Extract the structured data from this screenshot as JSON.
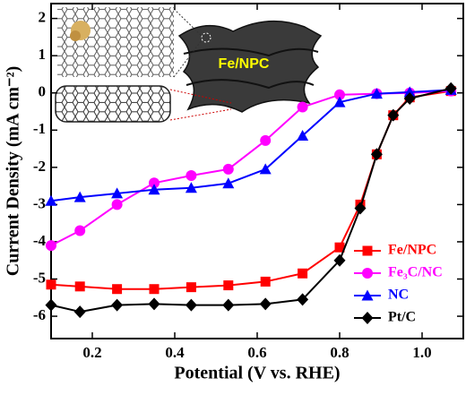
{
  "chart_data": {
    "type": "line",
    "xlabel": "Potential (V vs. RHE)",
    "ylabel": "Current Density (mA cm⁻²)",
    "annotation": "Fe/NPC",
    "xlim": [
      0.1,
      1.1
    ],
    "ylim": [
      -6.6,
      2.4
    ],
    "xticks": [
      0.2,
      0.4,
      0.6,
      0.8,
      {
        "value": 1.0,
        "label": "1.0"
      }
    ],
    "yticks": [
      -6,
      -5,
      -4,
      -3,
      -2,
      -1,
      0,
      1,
      2
    ],
    "legend": "lower right",
    "series": [
      {
        "name": "Fe/NPC",
        "color": "#ff0000",
        "marker": "square",
        "x": [
          0.1,
          0.17,
          0.26,
          0.35,
          0.44,
          0.53,
          0.62,
          0.71,
          0.8,
          0.85,
          0.89,
          0.93,
          0.97,
          1.07
        ],
        "values": [
          -5.15,
          -5.2,
          -5.27,
          -5.27,
          -5.22,
          -5.17,
          -5.07,
          -4.85,
          -4.15,
          -3.0,
          -1.65,
          -0.6,
          -0.12,
          0.05
        ]
      },
      {
        "name": "Fe₃C/NC",
        "color": "#ff00ff",
        "marker": "circle",
        "x": [
          0.1,
          0.17,
          0.26,
          0.35,
          0.44,
          0.53,
          0.62,
          0.71,
          0.8,
          0.89,
          0.97,
          1.07
        ],
        "values": [
          -4.1,
          -3.7,
          -3.0,
          -2.42,
          -2.22,
          -2.05,
          -1.28,
          -0.38,
          -0.05,
          -0.02,
          0.0,
          0.05
        ]
      },
      {
        "name": "NC",
        "color": "#0000ff",
        "marker": "triangle",
        "x": [
          0.1,
          0.17,
          0.26,
          0.35,
          0.44,
          0.53,
          0.62,
          0.71,
          0.8,
          0.89,
          0.97,
          1.07
        ],
        "values": [
          -2.9,
          -2.8,
          -2.7,
          -2.6,
          -2.55,
          -2.43,
          -2.05,
          -1.15,
          -0.25,
          -0.02,
          0.02,
          0.08
        ]
      },
      {
        "name": "Pt/C",
        "color": "#000000",
        "marker": "diamond",
        "x": [
          0.1,
          0.17,
          0.26,
          0.35,
          0.44,
          0.53,
          0.62,
          0.71,
          0.8,
          0.85,
          0.89,
          0.93,
          0.97,
          1.07
        ],
        "values": [
          -5.7,
          -5.88,
          -5.7,
          -5.67,
          -5.7,
          -5.7,
          -5.67,
          -5.55,
          -4.5,
          -3.1,
          -1.65,
          -0.6,
          -0.15,
          0.12
        ]
      }
    ]
  }
}
